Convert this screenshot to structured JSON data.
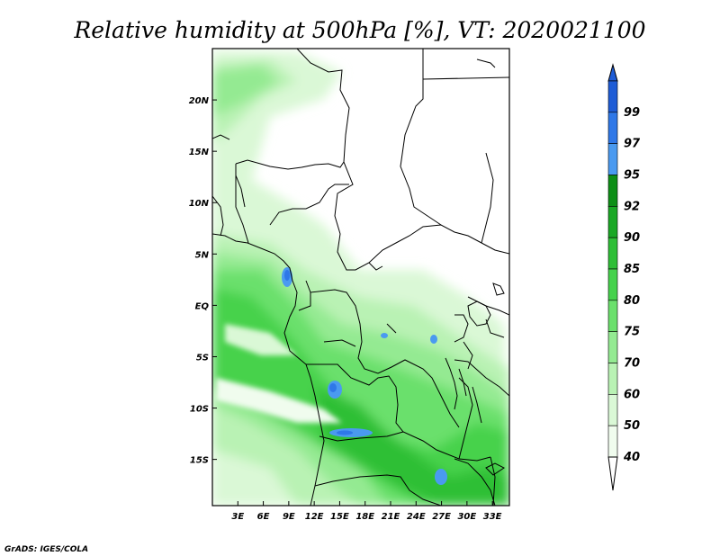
{
  "title": "Relative humidity at 500hPa [%], VT: 2020021100",
  "credit": "GrADS: IGES/COLA",
  "map": {
    "projection": "lat-lon",
    "lon_range": [
      0,
      35
    ],
    "lat_range": [
      -19.5,
      25
    ],
    "lat_ticks": [
      {
        "value": 20,
        "label": "20N"
      },
      {
        "value": 15,
        "label": "15N"
      },
      {
        "value": 10,
        "label": "10N"
      },
      {
        "value": 5,
        "label": "5N"
      },
      {
        "value": 0,
        "label": "EQ"
      },
      {
        "value": -5,
        "label": "5S"
      },
      {
        "value": -10,
        "label": "10S"
      },
      {
        "value": -15,
        "label": "15S"
      }
    ],
    "lon_ticks": [
      {
        "value": 3,
        "label": "3E"
      },
      {
        "value": 6,
        "label": "6E"
      },
      {
        "value": 9,
        "label": "9E"
      },
      {
        "value": 12,
        "label": "12E"
      },
      {
        "value": 15,
        "label": "15E"
      },
      {
        "value": 18,
        "label": "18E"
      },
      {
        "value": 21,
        "label": "21E"
      },
      {
        "value": 24,
        "label": "24E"
      },
      {
        "value": 27,
        "label": "27E"
      },
      {
        "value": 30,
        "label": "30E"
      },
      {
        "value": 33,
        "label": "33E"
      }
    ]
  },
  "colorbar": {
    "levels": [
      {
        "label": "99",
        "color": "#1e5cd6"
      },
      {
        "label": "97",
        "color": "#2f78e8"
      },
      {
        "label": "95",
        "color": "#4a9af0"
      },
      {
        "label": "92",
        "color": "#0d8f16"
      },
      {
        "label": "90",
        "color": "#1aa825"
      },
      {
        "label": "85",
        "color": "#2ebf36"
      },
      {
        "label": "80",
        "color": "#46d24c"
      },
      {
        "label": "75",
        "color": "#6be06c"
      },
      {
        "label": "70",
        "color": "#94ea92"
      },
      {
        "label": "60",
        "color": "#b9f2b4"
      },
      {
        "label": "50",
        "color": "#daf8d6"
      },
      {
        "label": "40",
        "color": "#f0fcee"
      }
    ],
    "top_color": "#1e5cd6",
    "bottom_color": "#ffffff"
  }
}
